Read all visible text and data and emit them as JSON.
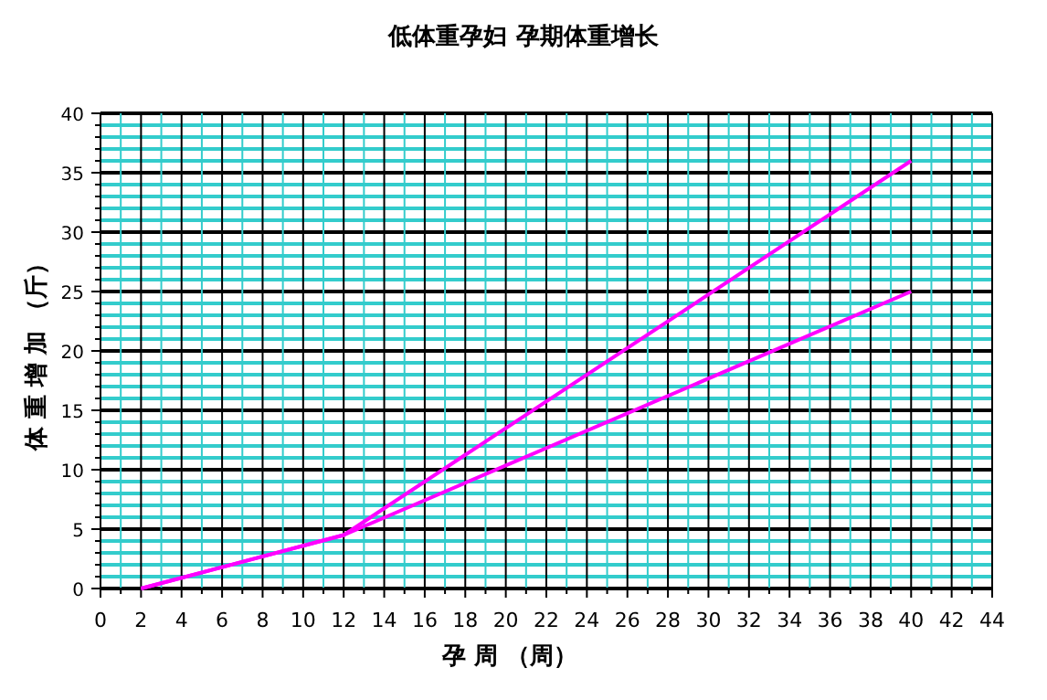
{
  "chart_data": {
    "type": "line",
    "title": "低体重孕妇  孕期体重增长",
    "xlabel": "孕 周 （周）",
    "ylabel": "体 重 增 加 （斤）",
    "series": [
      {
        "color": "#ff00ff",
        "x": [
          2,
          12,
          40
        ],
        "values": [
          0,
          4.5,
          36
        ]
      },
      {
        "color": "#ff00ff",
        "x": [
          2,
          12,
          40
        ],
        "values": [
          0,
          4.5,
          25
        ]
      }
    ],
    "xlim": [
      0,
      44
    ],
    "ylim": [
      0,
      40
    ],
    "xticks": [
      0,
      {
        "value": 1,
        "label": null
      },
      2,
      {
        "value": 3,
        "label": null
      },
      4,
      {
        "value": 5,
        "label": null
      },
      6,
      {
        "value": 7,
        "label": null
      },
      8,
      {
        "value": 9,
        "label": null
      },
      10,
      {
        "value": 11,
        "label": null
      },
      12,
      {
        "value": 13,
        "label": null
      },
      14,
      {
        "value": 15,
        "label": null
      },
      16,
      {
        "value": 17,
        "label": null
      },
      18,
      {
        "value": 19,
        "label": null
      },
      20,
      {
        "value": 21,
        "label": null
      },
      22,
      {
        "value": 23,
        "label": null
      },
      24,
      {
        "value": 25,
        "label": null
      },
      26,
      {
        "value": 27,
        "label": null
      },
      28,
      {
        "value": 29,
        "label": null
      },
      30,
      {
        "value": 31,
        "label": null
      },
      32,
      {
        "value": 33,
        "label": null
      },
      34,
      {
        "value": 35,
        "label": null
      },
      36,
      {
        "value": 37,
        "label": null
      },
      38,
      {
        "value": 39,
        "label": null
      },
      40,
      {
        "value": 41,
        "label": null
      },
      42,
      {
        "value": 43,
        "label": null
      },
      44
    ],
    "yticks": [
      0,
      {
        "value": 1,
        "label": null
      },
      {
        "value": 2,
        "label": null
      },
      {
        "value": 3,
        "label": null
      },
      {
        "value": 4,
        "label": null
      },
      5,
      {
        "value": 6,
        "label": null
      },
      {
        "value": 7,
        "label": null
      },
      {
        "value": 8,
        "label": null
      },
      {
        "value": 9,
        "label": null
      },
      10,
      {
        "value": 11,
        "label": null
      },
      {
        "value": 12,
        "label": null
      },
      {
        "value": 13,
        "label": null
      },
      {
        "value": 14,
        "label": null
      },
      15,
      {
        "value": 16,
        "label": null
      },
      {
        "value": 17,
        "label": null
      },
      {
        "value": 18,
        "label": null
      },
      {
        "value": 19,
        "label": null
      },
      20,
      {
        "value": 21,
        "label": null
      },
      {
        "value": 22,
        "label": null
      },
      {
        "value": 23,
        "label": null
      },
      {
        "value": 24,
        "label": null
      },
      25,
      {
        "value": 26,
        "label": null
      },
      {
        "value": 27,
        "label": null
      },
      {
        "value": 28,
        "label": null
      },
      {
        "value": 29,
        "label": null
      },
      30,
      {
        "value": 31,
        "label": null
      },
      {
        "value": 32,
        "label": null
      },
      {
        "value": 33,
        "label": null
      },
      {
        "value": 34,
        "label": null
      },
      35,
      {
        "value": 36,
        "label": null
      },
      {
        "value": 37,
        "label": null
      },
      {
        "value": 38,
        "label": null
      },
      {
        "value": 39,
        "label": null
      },
      40
    ],
    "grid": true,
    "marker": "none",
    "line_style": "solid"
  }
}
